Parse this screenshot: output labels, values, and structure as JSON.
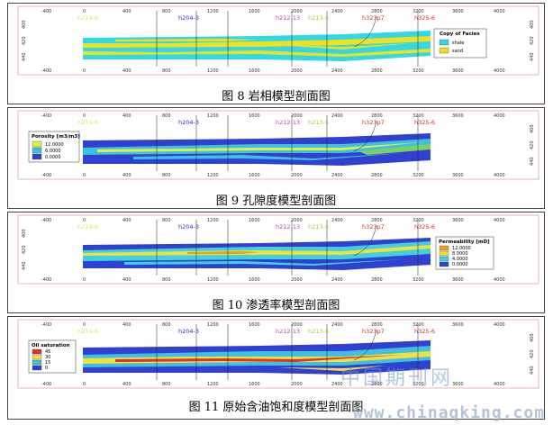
{
  "axis_ticks": [
    "-400",
    "0",
    "400",
    "800",
    "1200",
    "1600",
    "2000",
    "2400",
    "2800",
    "3200",
    "3600",
    "4000"
  ],
  "y_ticks": [
    "400",
    "420",
    "440"
  ],
  "wells": [
    {
      "name": "h214-6",
      "color": "#e0e060"
    },
    {
      "name": "h204-3",
      "color": "#3030c0"
    },
    {
      "name": "h212-13",
      "color": "#c040c0"
    },
    {
      "name": "h213-5",
      "color": "#c0c040"
    },
    {
      "name": "h323p7",
      "color": "#d03030"
    },
    {
      "name": "h325-6",
      "color": "#d03030"
    }
  ],
  "panels": [
    {
      "caption": "图 8 岩相模型剖面图",
      "legend": {
        "title": "Copy of Facies",
        "items": [
          {
            "label": "shale",
            "color": "#30d8e8"
          },
          {
            "label": "sand",
            "color": "#f0e020"
          }
        ]
      }
    },
    {
      "caption": "图 9 孔隙度模型剖面图",
      "legend": {
        "title": "Porosity [m3/m3]",
        "items": [
          {
            "label": "12.0000",
            "color": "#e0f040"
          },
          {
            "label": "6.0000",
            "color": "#40c0e0"
          },
          {
            "label": "0.0000",
            "color": "#3040d0"
          }
        ]
      }
    },
    {
      "caption": "图 10 渗透率模型剖面图",
      "legend": {
        "title": "Permeability [mD]",
        "items": [
          {
            "label": "12.0000",
            "color": "#f0a020"
          },
          {
            "label": "8.0000",
            "color": "#f0e040"
          },
          {
            "label": "4.0000",
            "color": "#40d0e0"
          },
          {
            "label": "0.0000",
            "color": "#3040d0"
          }
        ]
      }
    },
    {
      "caption": "图 11 原始含油饱和度模型剖面图",
      "legend": {
        "title": "Oil saturation",
        "items": [
          {
            "label": "45",
            "color": "#e03030"
          },
          {
            "label": "30",
            "color": "#f0e040"
          },
          {
            "label": "15",
            "color": "#40c0e0"
          },
          {
            "label": "0",
            "color": "#3040d0"
          }
        ]
      }
    }
  ],
  "watermark": {
    "cn": "中国期刊网",
    "url": "www.chinaqking.com"
  }
}
